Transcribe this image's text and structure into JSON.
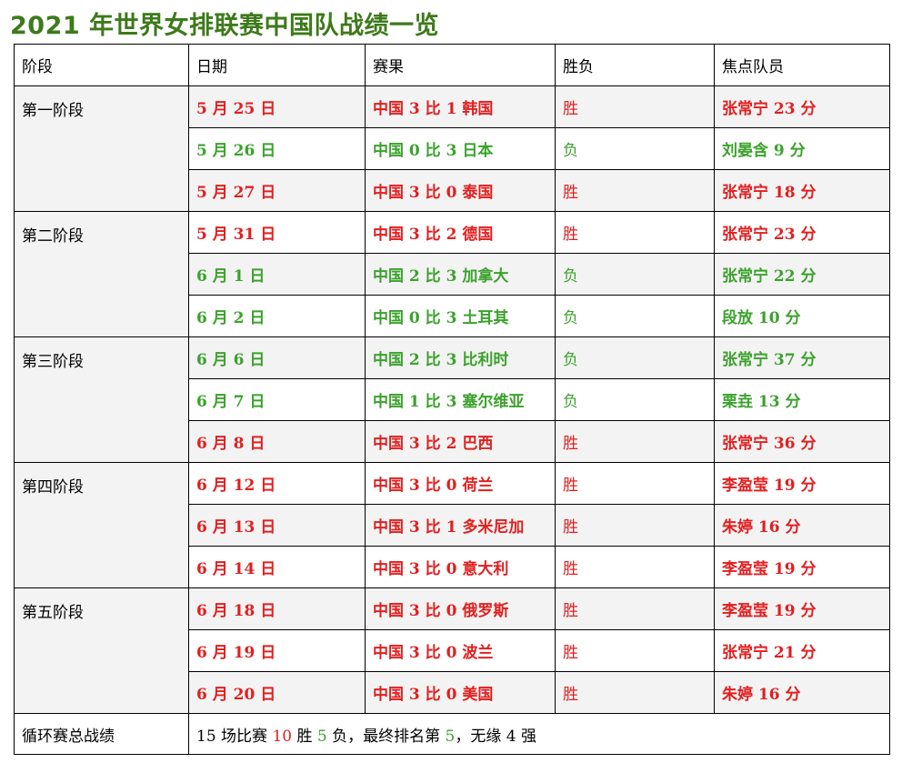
{
  "title": "2021 年世界女排联赛中国队战绩一览",
  "colors": {
    "win": "#e21f1f",
    "lose": "#3ba22c",
    "title": "#3d7a1b"
  },
  "headers": [
    "阶段",
    "日期",
    "赛果",
    "胜负",
    "焦点队员"
  ],
  "stages": [
    {
      "name": "第一阶段",
      "matches": [
        {
          "date": "5 月 25 日",
          "score": "中国 3 比 1 韩国",
          "result": "胜",
          "player": "张常宁 23 分",
          "win": true
        },
        {
          "date": "5 月 26 日",
          "score": "中国 0 比 3 日本",
          "result": "负",
          "player": "刘晏含 9 分",
          "win": false
        },
        {
          "date": "5 月 27 日",
          "score": "中国 3 比 0 泰国",
          "result": "胜",
          "player": "张常宁 18 分",
          "win": true
        }
      ]
    },
    {
      "name": "第二阶段",
      "matches": [
        {
          "date": "5 月 31 日",
          "score": "中国 3 比 2 德国",
          "result": "胜",
          "player": "张常宁 23 分",
          "win": true
        },
        {
          "date": "6 月 1 日",
          "score": "中国 2 比 3 加拿大",
          "result": "负",
          "player": "张常宁 22 分",
          "win": false
        },
        {
          "date": "6 月 2 日",
          "score": "中国 0 比 3 土耳其",
          "result": "负",
          "player": "段放 10 分",
          "win": false
        }
      ]
    },
    {
      "name": "第三阶段",
      "matches": [
        {
          "date": "6 月 6 日",
          "score": "中国 2 比 3 比利时",
          "result": "负",
          "player": "张常宁 37 分",
          "win": false
        },
        {
          "date": "6 月 7 日",
          "score": "中国 1 比 3 塞尔维亚",
          "result": "负",
          "player": "栗垚 13 分",
          "win": false
        },
        {
          "date": "6 月 8 日",
          "score": "中国 3 比 2 巴西",
          "result": "胜",
          "player": "张常宁 36 分",
          "win": true
        }
      ]
    },
    {
      "name": "第四阶段",
      "matches": [
        {
          "date": "6 月 12 日",
          "score": "中国 3 比 0 荷兰",
          "result": "胜",
          "player": "李盈莹 19 分",
          "win": true
        },
        {
          "date": "6 月 13 日",
          "score": "中国 3 比 1 多米尼加",
          "result": "胜",
          "player": "朱婷 16 分",
          "win": true
        },
        {
          "date": "6 月 14 日",
          "score": "中国 3 比 0 意大利",
          "result": "胜",
          "player": "李盈莹 19 分",
          "win": true
        }
      ]
    },
    {
      "name": "第五阶段",
      "matches": [
        {
          "date": "6 月 18 日",
          "score": "中国 3 比 0 俄罗斯",
          "result": "胜",
          "player": "李盈莹 19 分",
          "win": true
        },
        {
          "date": "6 月 19 日",
          "score": "中国 3 比 0 波兰",
          "result": "胜",
          "player": "张常宁 21 分",
          "win": true
        },
        {
          "date": "6 月 20 日",
          "score": "中国 3 比 0 美国",
          "result": "胜",
          "player": "朱婷 16 分",
          "win": true
        }
      ]
    }
  ],
  "summary": {
    "label": "循环赛总战绩",
    "part1": "15 场比赛 ",
    "wins": "10",
    "part2": " 胜 ",
    "losses": "5",
    "part3": " 负，最终排名第 ",
    "rank": "5",
    "part4": "，无缘 4 强"
  }
}
